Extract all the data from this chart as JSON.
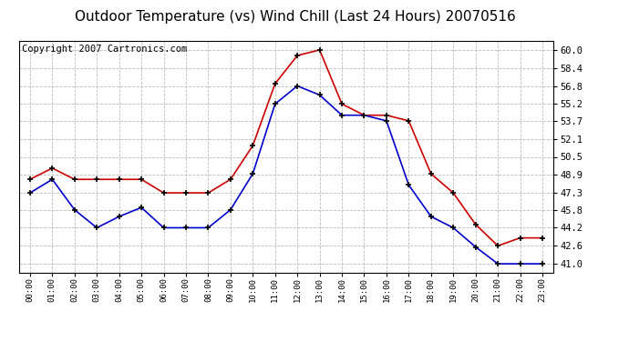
{
  "title": "Outdoor Temperature (vs) Wind Chill (Last 24 Hours) 20070516",
  "copyright": "Copyright 2007 Cartronics.com",
  "hours": [
    "00:00",
    "01:00",
    "02:00",
    "03:00",
    "04:00",
    "05:00",
    "06:00",
    "07:00",
    "08:00",
    "09:00",
    "10:00",
    "11:00",
    "12:00",
    "13:00",
    "14:00",
    "15:00",
    "16:00",
    "17:00",
    "18:00",
    "19:00",
    "20:00",
    "21:00",
    "22:00",
    "23:00"
  ],
  "red_temp": [
    48.5,
    49.5,
    48.5,
    48.5,
    48.5,
    48.5,
    47.3,
    47.3,
    47.3,
    48.5,
    51.5,
    57.0,
    59.5,
    60.0,
    55.2,
    54.2,
    54.2,
    53.7,
    49.0,
    47.3,
    44.5,
    42.6,
    43.3,
    43.3
  ],
  "blue_wc": [
    47.3,
    48.5,
    45.8,
    44.2,
    45.2,
    46.0,
    44.2,
    44.2,
    44.2,
    45.8,
    49.0,
    55.2,
    56.8,
    56.0,
    54.2,
    54.2,
    53.7,
    48.0,
    45.2,
    44.2,
    42.5,
    41.0,
    41.0,
    41.0
  ],
  "ylim_min": 40.2,
  "ylim_max": 60.8,
  "yticks": [
    41.0,
    42.6,
    44.2,
    45.8,
    47.3,
    48.9,
    50.5,
    52.1,
    53.7,
    55.2,
    56.8,
    58.4,
    60.0
  ],
  "ytick_labels": [
    "41.0",
    "42.6",
    "44.2",
    "45.8",
    "47.3",
    "48.9",
    "50.5",
    "52.1",
    "53.7",
    "55.2",
    "56.8",
    "58.4",
    "60.0"
  ],
  "red_color": "#cc0000",
  "blue_color": "#0000cc",
  "bg_color": "#ffffff",
  "grid_color": "#bbbbbb",
  "title_fontsize": 11,
  "copyright_fontsize": 7.5
}
